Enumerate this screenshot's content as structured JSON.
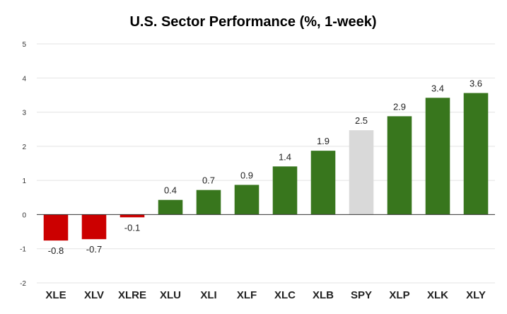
{
  "chart_data": {
    "type": "bar",
    "title": "U.S. Sector Performance (%, 1-week)",
    "xlabel": "",
    "ylabel": "",
    "ylim": [
      -2,
      5
    ],
    "yticks": [
      "5",
      "4",
      "3",
      "2",
      "1",
      "0",
      "-1",
      "-2"
    ],
    "grid": true,
    "legend": "none",
    "categories": [
      "XLE",
      "XLV",
      "XLRE",
      "XLU",
      "XLI",
      "XLF",
      "XLC",
      "XLB",
      "SPY",
      "XLP",
      "XLK",
      "XLY"
    ],
    "values": [
      -0.76,
      -0.72,
      -0.08,
      0.43,
      0.72,
      0.87,
      1.41,
      1.87,
      2.47,
      2.88,
      3.42,
      3.56
    ],
    "data_labels": [
      "-0.8",
      "-0.7",
      "-0.1",
      "0.4",
      "0.7",
      "0.9",
      "1.4",
      "1.9",
      "2.5",
      "2.9",
      "3.4",
      "3.6"
    ],
    "colors": {
      "negative": "#cc0000",
      "positive": "#38761d",
      "benchmark": "#d9d9d9"
    },
    "benchmark_category": "SPY"
  }
}
